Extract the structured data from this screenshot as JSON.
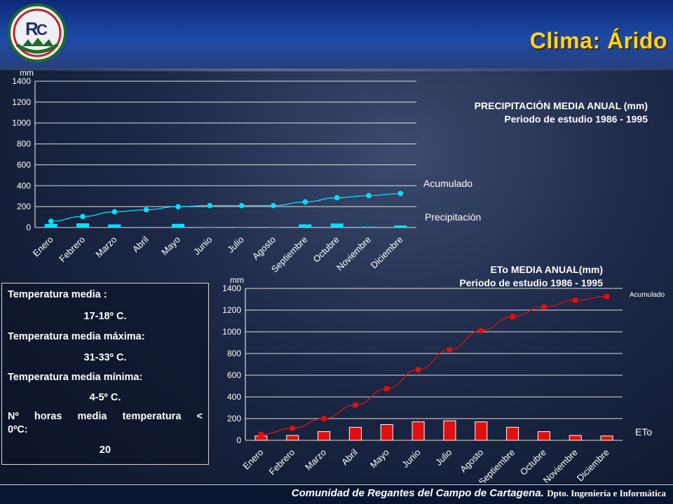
{
  "slide": {
    "title": "Clima: Árido"
  },
  "colors": {
    "title": "#ffd21a",
    "precip": "#00e0ff",
    "eto": "#e01010",
    "grid": "#ffffff"
  },
  "footer": {
    "main": "Comunidad de Regantes del Campo de Cartagena.",
    "sub": "Dpto. Ingeniería e Informática"
  },
  "temperature": {
    "items": [
      {
        "label": "Temperatura media :",
        "value": "17-18º C."
      },
      {
        "label": "Temperatura media máxima:",
        "value": "31-33º C."
      },
      {
        "label": "Temperatura media mínima:",
        "value": "4-5º C."
      },
      {
        "label_line1": "Nº horas media temperatura <",
        "label_line2": "0ºC:",
        "value": "20"
      }
    ]
  },
  "chart_data": [
    {
      "type": "bar",
      "title": "PRECIPITACIÓN MEDIA ANUAL (mm)",
      "subtitle": "Periodo de estudio 1986 - 1995",
      "ylabel": "mm",
      "ylim": [
        0,
        1400
      ],
      "yticks": [
        0,
        200,
        400,
        600,
        800,
        1000,
        1200,
        1400
      ],
      "categories": [
        "Enero",
        "Febrero",
        "Marzo",
        "Abril",
        "Mayo",
        "Junio",
        "Julio",
        "Agosto",
        "Septiembre",
        "Octubre",
        "Noviembre",
        "Diciembre"
      ],
      "series": [
        {
          "name": "Precipitación",
          "kind": "bar",
          "values": [
            35,
            40,
            30,
            5,
            35,
            2,
            0,
            0,
            30,
            38,
            8,
            20
          ]
        },
        {
          "name": "Acumulado",
          "kind": "line",
          "values": [
            60,
            105,
            150,
            170,
            200,
            210,
            210,
            210,
            245,
            285,
            305,
            325
          ]
        }
      ]
    },
    {
      "type": "bar",
      "title": "ETo MEDIA ANUAL(mm)",
      "subtitle": "Periodo de estudio 1986 - 1995",
      "ylabel": "mm",
      "ylim": [
        0,
        1400
      ],
      "yticks": [
        0,
        200,
        400,
        600,
        800,
        1000,
        1200,
        1400
      ],
      "categories": [
        "Enero",
        "Febrero",
        "Marzo",
        "Abril",
        "Mayo",
        "Junio",
        "Julio",
        "Agosto",
        "Septiembre",
        "Octubre",
        "Noviembre",
        "Diciembre"
      ],
      "series": [
        {
          "name": "ETo",
          "kind": "bar",
          "values": [
            40,
            45,
            80,
            120,
            145,
            170,
            180,
            170,
            120,
            80,
            45,
            40
          ]
        },
        {
          "name": "Acumulado",
          "kind": "line",
          "values": [
            55,
            110,
            200,
            325,
            475,
            650,
            835,
            1010,
            1140,
            1230,
            1290,
            1325
          ]
        }
      ]
    }
  ]
}
